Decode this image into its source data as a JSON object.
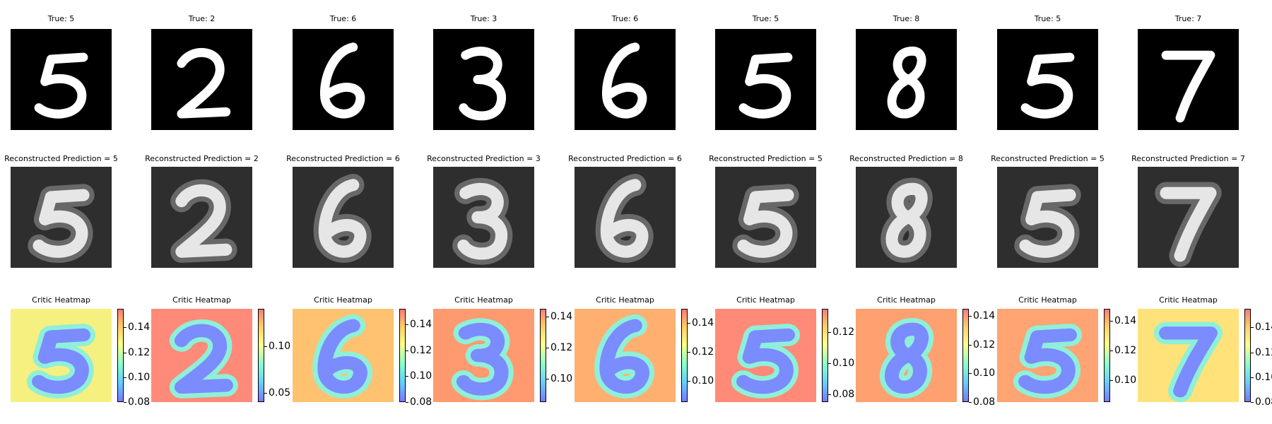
{
  "panels": [
    {
      "true_label": "True: 5",
      "recon_label": "Reconstructed Prediction = 5",
      "heat_label": "Critic Heatmap",
      "digit": "5",
      "heat_bg": "#f6f080",
      "ticks": [
        {
          "label": "0.14",
          "v": 0.14
        },
        {
          "label": "0.12",
          "v": 0.12
        },
        {
          "label": "0.10",
          "v": 0.1
        },
        {
          "label": "0.08",
          "v": 0.08
        }
      ],
      "range": [
        0.08,
        0.155
      ]
    },
    {
      "true_label": "True: 2",
      "recon_label": "Reconstructed Prediction = 2",
      "heat_label": "Critic Heatmap",
      "digit": "2",
      "heat_bg": "#ff8a7a",
      "ticks": [
        {
          "label": "0.10",
          "v": 0.1
        },
        {
          "label": "0.05",
          "v": 0.05
        }
      ],
      "range": [
        0.04,
        0.14
      ]
    },
    {
      "true_label": "True: 6",
      "recon_label": "Reconstructed Prediction = 6",
      "heat_label": "Critic Heatmap",
      "digit": "6",
      "heat_bg": "#ffc270",
      "ticks": [
        {
          "label": "0.14",
          "v": 0.14
        },
        {
          "label": "0.12",
          "v": 0.12
        },
        {
          "label": "0.10",
          "v": 0.1
        },
        {
          "label": "0.08",
          "v": 0.08
        }
      ],
      "range": [
        0.08,
        0.152
      ]
    },
    {
      "true_label": "True: 3",
      "recon_label": "Reconstructed Prediction = 3",
      "heat_label": "Critic Heatmap",
      "digit": "3",
      "heat_bg": "#ff9a70",
      "ticks": [
        {
          "label": "0.14",
          "v": 0.14
        },
        {
          "label": "0.12",
          "v": 0.12
        },
        {
          "label": "0.10",
          "v": 0.1
        }
      ],
      "range": [
        0.085,
        0.145
      ]
    },
    {
      "true_label": "True: 6",
      "recon_label": "Reconstructed Prediction = 6",
      "heat_label": "Critic Heatmap",
      "digit": "6",
      "heat_bg": "#ffb070",
      "ticks": [
        {
          "label": "0.14",
          "v": 0.14
        },
        {
          "label": "0.12",
          "v": 0.12
        },
        {
          "label": "0.10",
          "v": 0.1
        }
      ],
      "range": [
        0.085,
        0.15
      ]
    },
    {
      "true_label": "True: 5",
      "recon_label": "Reconstructed Prediction = 5",
      "heat_label": "Critic Heatmap",
      "digit": "5",
      "heat_bg": "#ff8a78",
      "ticks": [
        {
          "label": "0.12",
          "v": 0.12
        },
        {
          "label": "0.10",
          "v": 0.1
        },
        {
          "label": "0.08",
          "v": 0.08
        }
      ],
      "range": [
        0.075,
        0.135
      ]
    },
    {
      "true_label": "True: 8",
      "recon_label": "Reconstructed Prediction = 8",
      "heat_label": "Critic Heatmap",
      "digit": "8",
      "heat_bg": "#ffa070",
      "ticks": [
        {
          "label": "0.14",
          "v": 0.14
        },
        {
          "label": "0.12",
          "v": 0.12
        },
        {
          "label": "0.10",
          "v": 0.1
        },
        {
          "label": "0.08",
          "v": 0.08
        }
      ],
      "range": [
        0.08,
        0.145
      ]
    },
    {
      "true_label": "True: 5",
      "recon_label": "Reconstructed Prediction = 5",
      "heat_label": "Critic Heatmap",
      "digit": "5",
      "heat_bg": "#ffa472",
      "ticks": [
        {
          "label": "0.14",
          "v": 0.14
        },
        {
          "label": "0.12",
          "v": 0.12
        },
        {
          "label": "0.10",
          "v": 0.1
        }
      ],
      "range": [
        0.085,
        0.148
      ]
    },
    {
      "true_label": "True: 7",
      "recon_label": "Reconstructed Prediction = 7",
      "heat_label": "Critic Heatmap",
      "digit": "7",
      "heat_bg": "#ffe27a",
      "ticks": [
        {
          "label": "0.14",
          "v": 0.14
        },
        {
          "label": "0.12",
          "v": 0.12
        },
        {
          "label": "0.10",
          "v": 0.1
        },
        {
          "label": "0.08",
          "v": 0.08
        }
      ],
      "range": [
        0.08,
        0.155
      ]
    }
  ]
}
